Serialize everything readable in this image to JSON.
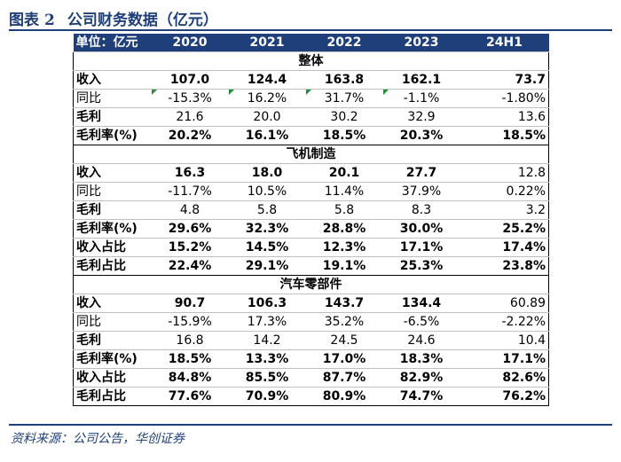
{
  "figure": {
    "label": "图表",
    "number": "2",
    "title": "公司财务数据（亿元）"
  },
  "table": {
    "header": [
      "单位：亿元",
      "2020",
      "2021",
      "2022",
      "2023",
      "24H1"
    ],
    "sections": [
      {
        "title": "整体",
        "rows": [
          {
            "label": "收入",
            "bold": true,
            "values": [
              "107.0",
              "124.4",
              "163.8",
              "162.1",
              "73.7"
            ]
          },
          {
            "label": "同比",
            "bold": false,
            "values": [
              "-15.3%",
              "16.2%",
              "31.7%",
              "-1.1%",
              "-1.80%"
            ],
            "flag_cells": [
              0,
              1,
              2,
              3
            ]
          },
          {
            "label": "毛利",
            "bold": true,
            "values": [
              "21.6",
              "20.0",
              "30.2",
              "32.9",
              "13.6"
            ],
            "value_weight": "normal"
          },
          {
            "label": "毛利率(%)",
            "bold": true,
            "values": [
              "20.2%",
              "16.1%",
              "18.5%",
              "20.3%",
              "18.5%"
            ]
          }
        ]
      },
      {
        "title": "飞机制造",
        "rows": [
          {
            "label": "收入",
            "bold": true,
            "values": [
              "16.3",
              "18.0",
              "20.1",
              "27.7",
              "12.8"
            ],
            "value_weight_last": "normal"
          },
          {
            "label": "同比",
            "bold": false,
            "values": [
              "-11.7%",
              "10.5%",
              "11.4%",
              "37.9%",
              "0.22%"
            ]
          },
          {
            "label": "毛利",
            "bold": true,
            "values": [
              "4.8",
              "5.8",
              "5.8",
              "8.3",
              "3.2"
            ],
            "value_weight": "normal"
          },
          {
            "label": "毛利率(%)",
            "bold": true,
            "values": [
              "29.6%",
              "32.3%",
              "28.8%",
              "30.0%",
              "25.2%"
            ]
          },
          {
            "label": "收入占比",
            "bold": true,
            "values": [
              "15.2%",
              "14.5%",
              "12.3%",
              "17.1%",
              "17.4%"
            ]
          },
          {
            "label": "毛利占比",
            "bold": true,
            "values": [
              "22.4%",
              "29.1%",
              "19.1%",
              "25.3%",
              "23.8%"
            ]
          }
        ]
      },
      {
        "title": "汽车零部件",
        "rows": [
          {
            "label": "收入",
            "bold": true,
            "values": [
              "90.7",
              "106.3",
              "143.7",
              "134.4",
              "60.89"
            ],
            "value_weight_last": "normal"
          },
          {
            "label": "同比",
            "bold": false,
            "values": [
              "-15.9%",
              "17.3%",
              "35.2%",
              "-6.5%",
              "-2.22%"
            ]
          },
          {
            "label": "毛利",
            "bold": true,
            "values": [
              "16.8",
              "14.2",
              "24.5",
              "24.6",
              "10.4"
            ],
            "value_weight": "normal"
          },
          {
            "label": "毛利率(%)",
            "bold": true,
            "values": [
              "18.5%",
              "13.3%",
              "17.0%",
              "18.3%",
              "17.1%"
            ]
          },
          {
            "label": "收入占比",
            "bold": true,
            "values": [
              "84.8%",
              "85.5%",
              "87.7%",
              "82.9%",
              "82.6%"
            ]
          },
          {
            "label": "毛利占比",
            "bold": true,
            "values": [
              "77.6%",
              "70.9%",
              "80.9%",
              "74.7%",
              "76.2%"
            ]
          }
        ]
      }
    ]
  },
  "source": "资料来源：公司公告，华创证券",
  "colors": {
    "accent": "#1f3f7a",
    "flag": "#1f8f3a"
  }
}
